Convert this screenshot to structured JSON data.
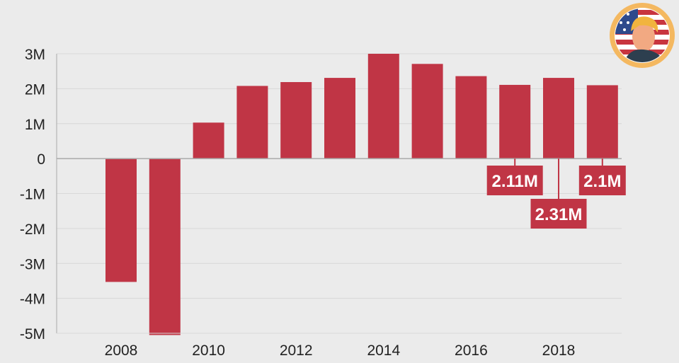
{
  "colors": {
    "bar": "#c03545",
    "background": "#ebebeb",
    "grid": "#d8d8d8",
    "axis": "#aaaaaa",
    "badge_ring": "#f4b860"
  },
  "icons": {
    "badge": "flag-avatar-icon"
  },
  "chart_data": {
    "type": "bar",
    "title": "",
    "xlabel": "",
    "ylabel": "",
    "categories": [
      "2008",
      "2009",
      "2010",
      "2011",
      "2012",
      "2013",
      "2014",
      "2015",
      "2016",
      "2017",
      "2018",
      "2019"
    ],
    "values": [
      -3.53,
      -5.05,
      1.03,
      2.08,
      2.19,
      2.31,
      3.0,
      2.71,
      2.36,
      2.11,
      2.31,
      2.1
    ],
    "ylim": [
      -5,
      3
    ],
    "y_ticks": [
      "-5M",
      "-4M",
      "-3M",
      "-2M",
      "-1M",
      "0",
      "1M",
      "2M",
      "3M"
    ],
    "x_tick_labels": [
      "2008",
      "2010",
      "2012",
      "2014",
      "2016",
      "2018"
    ],
    "grid": true,
    "callouts": [
      {
        "category": "2017",
        "text": "2.11M"
      },
      {
        "category": "2018",
        "text": "2.31M"
      },
      {
        "category": "2019",
        "text": "2.1M"
      }
    ]
  }
}
